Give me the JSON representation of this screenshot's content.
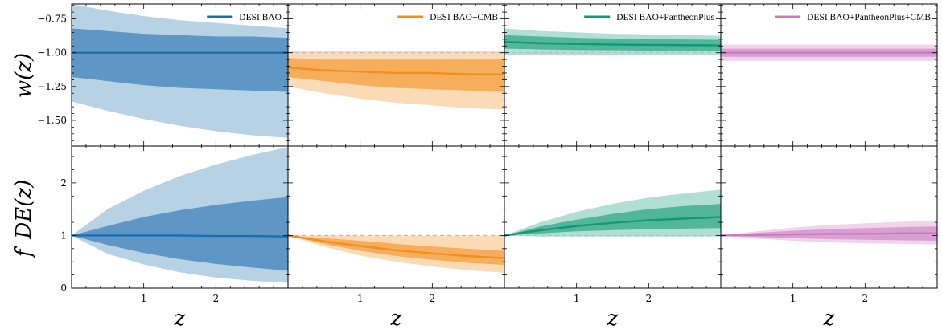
{
  "figure": {
    "x_axis_label": "z",
    "y_axis_labels": [
      "w(z)",
      "f_DE(z)"
    ]
  },
  "chart_data": [
    {
      "type": "line",
      "row": "w",
      "column": 1,
      "legend": "DESI BAO",
      "color": "#1f6fae",
      "x": [
        0.0,
        0.5,
        1.0,
        1.5,
        2.0,
        2.5,
        3.0
      ],
      "series": [
        {
          "name": "DESI BAO",
          "values": [
            -1.0,
            -1.0,
            -1.0,
            -1.0,
            -1.0,
            -1.0,
            -1.0
          ],
          "band_1sigma_low": [
            -1.18,
            -1.21,
            -1.24,
            -1.26,
            -1.27,
            -1.28,
            -1.29
          ],
          "band_1sigma_high": [
            -0.82,
            -0.84,
            -0.86,
            -0.87,
            -0.88,
            -0.88,
            -0.89
          ],
          "band_2sigma_low": [
            -1.36,
            -1.43,
            -1.49,
            -1.54,
            -1.58,
            -1.61,
            -1.63
          ],
          "band_2sigma_high": [
            -0.64,
            -0.69,
            -0.73,
            -0.76,
            -0.78,
            -0.8,
            -0.82
          ]
        }
      ],
      "reference_line": null,
      "ylim": [
        -1.69,
        -0.64
      ],
      "xlim": [
        0.0,
        3.0
      ],
      "yticks": [
        -0.75,
        -1.0,
        -1.25,
        -1.5
      ],
      "xticks": [
        1,
        2
      ]
    },
    {
      "type": "line",
      "row": "w",
      "column": 2,
      "legend": "DESI BAO+CMB",
      "color": "#f28e1c",
      "x": [
        0.0,
        0.5,
        1.0,
        1.5,
        2.0,
        2.5,
        3.0
      ],
      "series": [
        {
          "name": "DESI BAO+CMB",
          "values": [
            -1.11,
            -1.13,
            -1.14,
            -1.15,
            -1.15,
            -1.16,
            -1.16
          ],
          "band_1sigma_low": [
            -1.18,
            -1.21,
            -1.24,
            -1.26,
            -1.27,
            -1.28,
            -1.29
          ],
          "band_1sigma_high": [
            -1.04,
            -1.05,
            -1.05,
            -1.05,
            -1.05,
            -1.05,
            -1.05
          ],
          "band_2sigma_low": [
            -1.25,
            -1.3,
            -1.34,
            -1.37,
            -1.39,
            -1.41,
            -1.42
          ],
          "band_2sigma_high": [
            -0.99,
            -0.99,
            -0.99,
            -0.99,
            -0.99,
            -0.99,
            -0.99
          ]
        }
      ],
      "reference_line": -1.0,
      "ylim": [
        -1.69,
        -0.64
      ],
      "xlim": [
        0.0,
        3.0
      ],
      "yticks": [
        -0.75,
        -1.0,
        -1.25,
        -1.5
      ],
      "xticks": [
        1,
        2
      ]
    },
    {
      "type": "line",
      "row": "w",
      "column": 3,
      "legend": "DESI BAO+PantheonPlus",
      "color": "#0f9a74",
      "x": [
        0.0,
        0.5,
        1.0,
        1.5,
        2.0,
        2.5,
        3.0
      ],
      "series": [
        {
          "name": "DESI BAO+PantheonPlus",
          "values": [
            -0.92,
            -0.93,
            -0.935,
            -0.94,
            -0.942,
            -0.944,
            -0.945
          ],
          "band_1sigma_low": [
            -0.97,
            -0.975,
            -0.98,
            -0.982,
            -0.984,
            -0.985,
            -0.986
          ],
          "band_1sigma_high": [
            -0.87,
            -0.88,
            -0.89,
            -0.895,
            -0.9,
            -0.902,
            -0.904
          ],
          "band_2sigma_low": [
            -1.02,
            -1.02,
            -1.02,
            -1.02,
            -1.02,
            -1.02,
            -1.02
          ],
          "band_2sigma_high": [
            -0.82,
            -0.84,
            -0.85,
            -0.86,
            -0.865,
            -0.87,
            -0.875
          ]
        }
      ],
      "reference_line": -1.0,
      "ylim": [
        -1.69,
        -0.64
      ],
      "xlim": [
        0.0,
        3.0
      ],
      "yticks": [
        -0.75,
        -1.0,
        -1.25,
        -1.5
      ],
      "xticks": [
        1,
        2
      ]
    },
    {
      "type": "line",
      "row": "w",
      "column": 4,
      "legend": "DESI BAO+PantheonPlus+CMB",
      "color": "#cc79c0",
      "x": [
        0.0,
        0.5,
        1.0,
        1.5,
        2.0,
        2.5,
        3.0
      ],
      "series": [
        {
          "name": "DESI BAO+PantheonPlus+CMB",
          "values": [
            -1.0,
            -1.0,
            -1.0,
            -1.0,
            -1.0,
            -1.0,
            -1.0
          ],
          "band_1sigma_low": [
            -1.03,
            -1.03,
            -1.03,
            -1.03,
            -1.03,
            -1.03,
            -1.03
          ],
          "band_1sigma_high": [
            -0.97,
            -0.97,
            -0.97,
            -0.97,
            -0.97,
            -0.97,
            -0.97
          ],
          "band_2sigma_low": [
            -1.06,
            -1.06,
            -1.06,
            -1.06,
            -1.06,
            -1.06,
            -1.06
          ],
          "band_2sigma_high": [
            -0.94,
            -0.94,
            -0.94,
            -0.94,
            -0.94,
            -0.94,
            -0.94
          ]
        }
      ],
      "reference_line": -1.0,
      "ylim": [
        -1.69,
        -0.64
      ],
      "xlim": [
        0.0,
        3.0
      ],
      "yticks": [
        -0.75,
        -1.0,
        -1.25,
        -1.5
      ],
      "xticks": [
        1,
        2
      ]
    },
    {
      "type": "line",
      "row": "f",
      "column": 1,
      "legend": "",
      "color": "#1f6fae",
      "x": [
        0.0,
        0.5,
        1.0,
        1.5,
        2.0,
        2.5,
        3.0
      ],
      "series": [
        {
          "name": "DESI BAO",
          "values": [
            1.0,
            1.0,
            1.0,
            1.0,
            0.99,
            0.99,
            0.98
          ],
          "band_1sigma_low": [
            1.0,
            0.82,
            0.67,
            0.55,
            0.46,
            0.39,
            0.33
          ],
          "band_1sigma_high": [
            1.0,
            1.18,
            1.35,
            1.48,
            1.58,
            1.66,
            1.73
          ],
          "band_2sigma_low": [
            1.0,
            0.65,
            0.45,
            0.3,
            0.2,
            0.14,
            0.1
          ],
          "band_2sigma_high": [
            1.0,
            1.5,
            1.85,
            2.13,
            2.35,
            2.53,
            2.68
          ]
        }
      ],
      "reference_line": null,
      "ylim": [
        0.0,
        2.7
      ],
      "xlim": [
        0.0,
        3.0
      ],
      "yticks": [
        0,
        1,
        2
      ],
      "xticks": [
        1,
        2
      ]
    },
    {
      "type": "line",
      "row": "f",
      "column": 2,
      "legend": "",
      "color": "#f28e1c",
      "x": [
        0.0,
        0.5,
        1.0,
        1.5,
        2.0,
        2.5,
        3.0
      ],
      "series": [
        {
          "name": "DESI BAO+CMB",
          "values": [
            1.0,
            0.89,
            0.8,
            0.72,
            0.66,
            0.61,
            0.57
          ],
          "band_1sigma_low": [
            1.0,
            0.84,
            0.71,
            0.61,
            0.54,
            0.48,
            0.44
          ],
          "band_1sigma_high": [
            1.0,
            0.95,
            0.9,
            0.84,
            0.79,
            0.75,
            0.71
          ],
          "band_2sigma_low": [
            1.0,
            0.79,
            0.62,
            0.5,
            0.41,
            0.34,
            0.29
          ],
          "band_2sigma_high": [
            1.0,
            1.0,
            1.0,
            1.0,
            1.0,
            1.0,
            1.0
          ]
        }
      ],
      "reference_line": 1.0,
      "ylim": [
        0.0,
        2.7
      ],
      "xlim": [
        0.0,
        3.0
      ],
      "yticks": [
        0,
        1,
        2
      ],
      "xticks": [
        1,
        2
      ]
    },
    {
      "type": "line",
      "row": "f",
      "column": 3,
      "legend": "",
      "color": "#0f9a74",
      "x": [
        0.0,
        0.5,
        1.0,
        1.5,
        2.0,
        2.5,
        3.0
      ],
      "series": [
        {
          "name": "DESI BAO+PantheonPlus",
          "values": [
            1.0,
            1.1,
            1.18,
            1.24,
            1.29,
            1.32,
            1.35
          ],
          "band_1sigma_low": [
            1.0,
            1.04,
            1.08,
            1.1,
            1.12,
            1.13,
            1.14
          ],
          "band_1sigma_high": [
            1.0,
            1.17,
            1.3,
            1.41,
            1.5,
            1.56,
            1.6
          ],
          "band_2sigma_low": [
            1.0,
            0.98,
            0.98,
            0.98,
            0.98,
            0.98,
            0.98
          ],
          "band_2sigma_high": [
            1.0,
            1.25,
            1.45,
            1.6,
            1.72,
            1.8,
            1.87
          ]
        }
      ],
      "reference_line": 1.0,
      "ylim": [
        0.0,
        2.7
      ],
      "xlim": [
        0.0,
        3.0
      ],
      "yticks": [
        0,
        1,
        2
      ],
      "xticks": [
        1,
        2
      ]
    },
    {
      "type": "line",
      "row": "f",
      "column": 4,
      "legend": "",
      "color": "#cc79c0",
      "x": [
        0.0,
        0.5,
        1.0,
        1.5,
        2.0,
        2.5,
        3.0
      ],
      "series": [
        {
          "name": "DESI BAO+PantheonPlus+CMB",
          "values": [
            1.0,
            1.01,
            1.02,
            1.03,
            1.03,
            1.04,
            1.04
          ],
          "band_1sigma_low": [
            1.0,
            0.97,
            0.95,
            0.93,
            0.92,
            0.91,
            0.9
          ],
          "band_1sigma_high": [
            1.0,
            1.05,
            1.09,
            1.12,
            1.14,
            1.16,
            1.17
          ],
          "band_2sigma_low": [
            1.0,
            0.94,
            0.9,
            0.87,
            0.85,
            0.84,
            0.83
          ],
          "band_2sigma_high": [
            1.0,
            1.08,
            1.15,
            1.2,
            1.23,
            1.26,
            1.28
          ]
        }
      ],
      "reference_line": 1.0,
      "ylim": [
        0.0,
        2.7
      ],
      "xlim": [
        0.0,
        3.0
      ],
      "yticks": [
        0,
        1,
        2
      ],
      "xticks": [
        1,
        2
      ]
    }
  ]
}
